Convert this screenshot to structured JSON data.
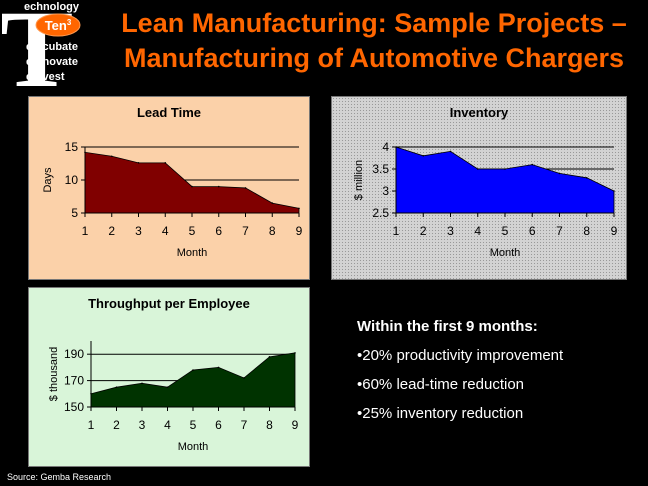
{
  "logo": {
    "big_letter": "T",
    "lines": [
      "echnology",
      "e-ncubate",
      "e-nnovate",
      "e-nvest"
    ],
    "badge": "Ten",
    "badge_sup": "3"
  },
  "title": {
    "line1": "Lean Manufacturing: Sample Projects –",
    "line2": "Manufacturing of Automotive Chargers"
  },
  "colors": {
    "title": "#ff6600",
    "lead_fill": "#800000",
    "inventory_fill": "#0000ff",
    "throughput_fill": "#003300"
  },
  "chart_data": [
    {
      "type": "area",
      "title": "Lead Time",
      "xlabel": "Month",
      "ylabel": "Days",
      "x": [
        1,
        2,
        3,
        4,
        5,
        6,
        7,
        8,
        9
      ],
      "values": [
        14.2,
        13.6,
        12.6,
        12.6,
        9,
        9,
        8.8,
        6.5,
        5.7
      ],
      "ylim": [
        5,
        15
      ],
      "yticks": [
        5,
        10,
        15
      ],
      "gridlines": [
        10,
        15
      ]
    },
    {
      "type": "area",
      "title": "Inventory",
      "xlabel": "Month",
      "ylabel": "$ million",
      "x": [
        1,
        2,
        3,
        4,
        5,
        6,
        7,
        8,
        9
      ],
      "values": [
        4.0,
        3.8,
        3.9,
        3.5,
        3.5,
        3.6,
        3.4,
        3.3,
        3.0
      ],
      "ylim": [
        2.5,
        4
      ],
      "yticks": [
        2.5,
        3,
        3.5,
        4
      ],
      "ytick_labels": [
        "2.5",
        "3",
        "3.5",
        "4"
      ],
      "gridlines": [
        3.5,
        4
      ]
    },
    {
      "type": "area",
      "title": "Throughput per Employee",
      "xlabel": "Month",
      "ylabel": "$ thousand",
      "x": [
        1,
        2,
        3,
        4,
        5,
        6,
        7,
        8,
        9
      ],
      "values": [
        160,
        165,
        168,
        165,
        178,
        180,
        172,
        188,
        191
      ],
      "ylim": [
        150,
        200
      ],
      "yticks": [
        150,
        170,
        190
      ],
      "gridlines": [
        170,
        190
      ]
    }
  ],
  "summary": {
    "heading": "Within the first 9 months:",
    "items": [
      "•20% productivity improvement",
      "•60% lead-time reduction",
      "•25% inventory reduction"
    ]
  },
  "source": "Source: Gemba Research"
}
